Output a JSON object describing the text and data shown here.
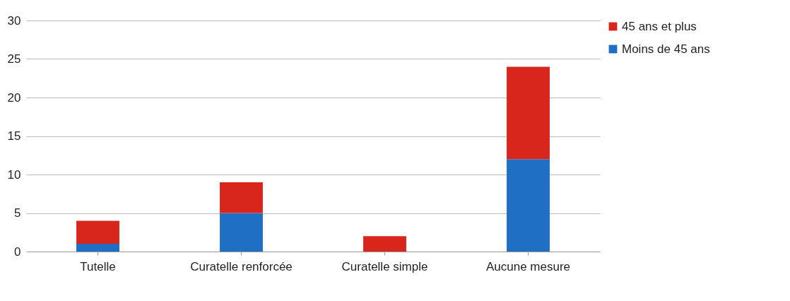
{
  "chart_data": {
    "type": "bar",
    "stacked": true,
    "categories": [
      "Tutelle",
      "Curatelle renforcée",
      "Curatelle simple",
      "Aucune mesure"
    ],
    "series": [
      {
        "name": "Moins de 45 ans",
        "color": "#1f6fc5",
        "values": [
          1,
          5,
          0,
          12
        ]
      },
      {
        "name": "45 ans et plus",
        "color": "#d9261c",
        "values": [
          3,
          4,
          2,
          12
        ]
      }
    ],
    "ylim": [
      0,
      30
    ],
    "yticks": [
      0,
      5,
      10,
      15,
      20,
      25,
      30
    ],
    "grid": "y",
    "legend": "right"
  }
}
